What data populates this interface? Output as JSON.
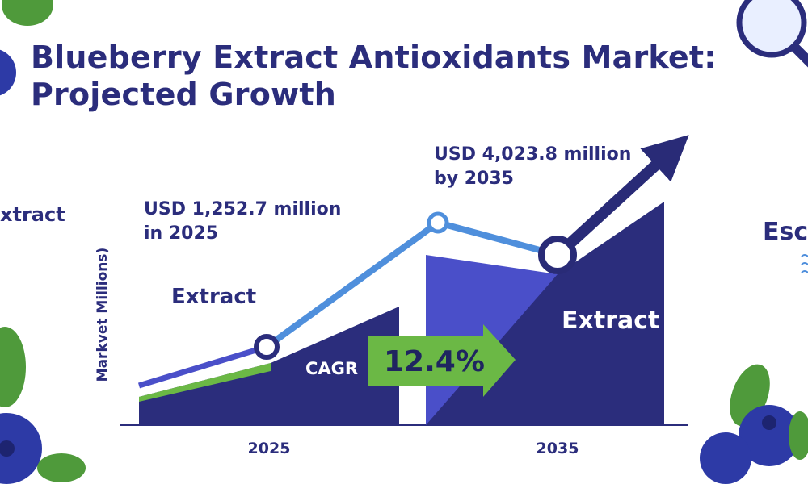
{
  "title_line1": "Blueberry Extract Antioxidants Market:",
  "title_line2": "Projected Growth",
  "side_text_left": "xtract",
  "side_text_right": "Esc",
  "colors": {
    "navy": "#2b2d7c",
    "dark_navy": "#292b77",
    "mid_blue": "#4a4fc9",
    "light_blue": "#4f8fdc",
    "green": "#6bb845",
    "leaf": "#4f9a3b",
    "berry": "#2d3aa6"
  },
  "chart_data": {
    "type": "area",
    "title": "Blueberry Extract Antioxidants Market: Projected Growth",
    "ylabel": "Markvet Millions)",
    "categories": [
      "2025",
      "2035"
    ],
    "annotations": {
      "start": "USD 1,252.7 million\nin 2025",
      "end": "USD 4,023.8 million\nby 2035",
      "cagr_label": "CAGR",
      "cagr_value": "12.4%",
      "left_label": "Extract",
      "right_label": "Extract"
    },
    "series": [
      {
        "values": [
          1252.7,
          4023.8
        ]
      }
    ]
  }
}
